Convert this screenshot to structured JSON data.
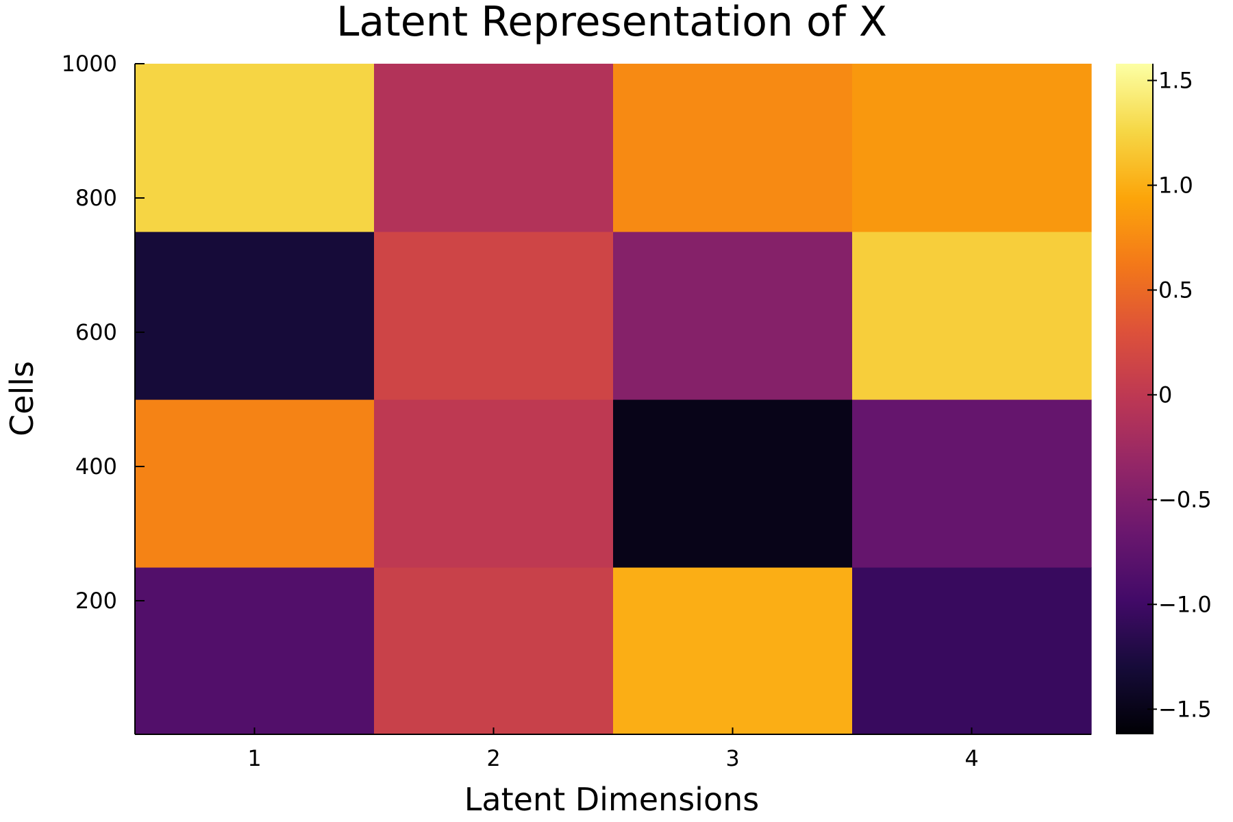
{
  "chart_data": {
    "type": "heatmap",
    "title": "Latent Representation of X",
    "xlabel": "Latent Dimensions",
    "ylabel": "Cells",
    "x_categories": [
      1,
      2,
      3,
      4
    ],
    "x_tick_labels": [
      "1",
      "2",
      "3",
      "4"
    ],
    "ylim": [
      1,
      1000
    ],
    "y_ticks": [
      200,
      400,
      600,
      800,
      1000
    ],
    "y_tick_labels": [
      "200",
      "400",
      "600",
      "800",
      "1000"
    ],
    "colormap": "inferno",
    "color_range": [
      -1.62,
      1.58
    ],
    "colorbar_ticks": [
      -1.5,
      -1.0,
      -0.5,
      0,
      0.5,
      1.0,
      1.5
    ],
    "colorbar_tick_labels": [
      "−1.5",
      "−1.0",
      "−0.5",
      "0",
      "0.5",
      "1.0",
      "1.5"
    ],
    "row_blocks": [
      {
        "y_range": [
          1,
          250
        ],
        "values": [
          -0.85,
          0.1,
          1.0,
          -1.05
        ]
      },
      {
        "y_range": [
          250,
          500
        ],
        "values": [
          0.7,
          0.0,
          -1.5,
          -0.7
        ]
      },
      {
        "y_range": [
          500,
          750
        ],
        "values": [
          -1.3,
          0.15,
          -0.45,
          1.2
        ]
      },
      {
        "y_range": [
          750,
          1000
        ],
        "values": [
          1.25,
          -0.1,
          0.75,
          0.85
        ]
      }
    ],
    "grid": false,
    "legend": "colorbar right"
  }
}
